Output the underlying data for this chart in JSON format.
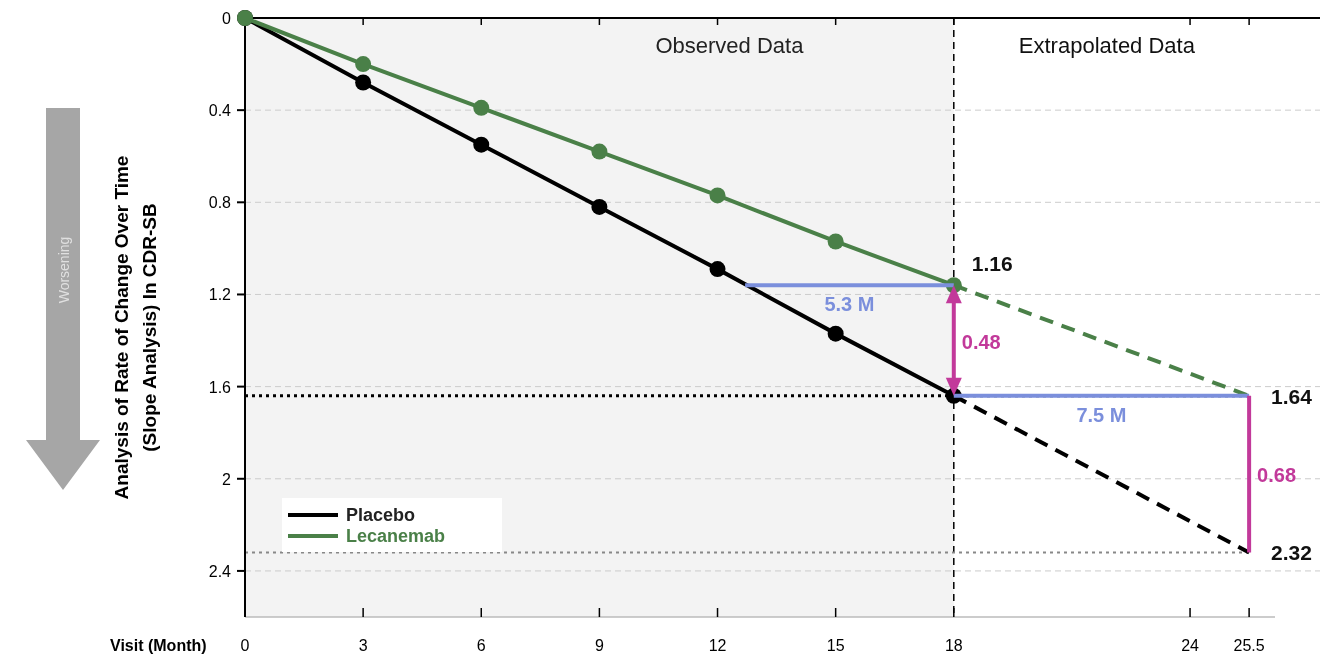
{
  "chart_data": {
    "type": "line",
    "xlabel": "Visit (Month)",
    "ylabel": "Analysis of Rate of Change Over Time\n(Slope Analysis) In CDR-SB",
    "xlim": [
      0,
      27.3
    ],
    "xticks": [
      0,
      3,
      6,
      9,
      12,
      15,
      18,
      24,
      25.5
    ],
    "ylim": [
      2.6,
      0
    ],
    "yticks": [
      0,
      0.4,
      0.8,
      1.2,
      1.6,
      2,
      2.4
    ],
    "grid": "y",
    "legend": "bottom left",
    "series": [
      {
        "name": "Placebo",
        "color": "#000000",
        "x": [
          0,
          3,
          6,
          9,
          12,
          15,
          18
        ],
        "values": [
          0,
          0.28,
          0.55,
          0.82,
          1.09,
          1.37,
          1.64
        ],
        "marker": "circle",
        "line_style": "solid"
      },
      {
        "name": "Lecanemab",
        "color": "#4a8048",
        "x": [
          0,
          3,
          6,
          9,
          12,
          15,
          18
        ],
        "values": [
          0,
          0.2,
          0.39,
          0.58,
          0.77,
          0.97,
          1.16
        ],
        "marker": "circle",
        "line_style": "solid",
        "value_labels": [
          null,
          null,
          null,
          null,
          null,
          null,
          "1.16"
        ]
      },
      {
        "color": "#000000",
        "x": [
          18,
          25.5
        ],
        "values": [
          1.64,
          2.32
        ],
        "marker": "none",
        "line_style": "dashed",
        "value_labels": [
          null,
          "2.32"
        ]
      },
      {
        "color": "#4a8048",
        "x": [
          18,
          25.5
        ],
        "values": [
          1.16,
          1.64
        ],
        "marker": "none",
        "line_style": "dashed",
        "value_labels": [
          null,
          "1.64"
        ]
      },
      {
        "name": "5.3 M",
        "color": "#7b8fdc",
        "x": [
          12.7,
          18
        ],
        "values": [
          1.16,
          1.16
        ],
        "marker": "none",
        "line_style": "solid"
      },
      {
        "name": "7.5 M",
        "color": "#7b8fdc",
        "x": [
          18,
          25.5
        ],
        "values": [
          1.64,
          1.64
        ],
        "marker": "none",
        "line_style": "solid"
      },
      {
        "name": "0.68",
        "color": "#c2399a",
        "x": [
          25.5,
          25.5
        ],
        "values": [
          1.64,
          2.32
        ],
        "marker": "none",
        "line_style": "solid"
      }
    ],
    "bands": [
      {
        "axis": "x",
        "from": 0,
        "to": 18,
        "label": "Observed Data",
        "color": "#f3f3f3"
      }
    ],
    "ref_lines": [
      {
        "axis": "x",
        "value": 18,
        "line_style": "dashed",
        "color": "#000000"
      },
      {
        "axis": "y",
        "value": 1.64,
        "line_style": "dotted",
        "color": "#000000"
      },
      {
        "axis": "y",
        "value": 2.32,
        "line_style": "dotted",
        "color": "#888888"
      }
    ],
    "annotations": [
      "Extrapolated Data",
      "Worsening",
      "0.48"
    ]
  }
}
